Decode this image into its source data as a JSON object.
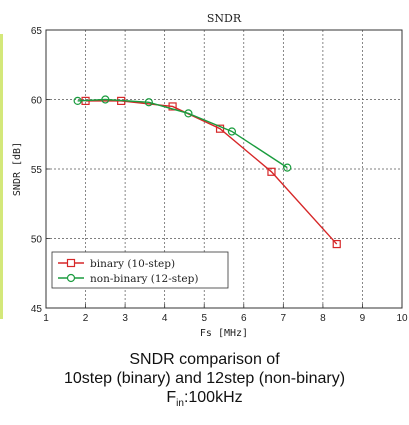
{
  "chart_data": {
    "type": "line",
    "title": "SNDR",
    "xlabel": "Fs [MHz]",
    "ylabel": "SNDR [dB]",
    "xlim": [
      1,
      10
    ],
    "ylim": [
      45,
      65
    ],
    "xticks": [
      "1",
      "2",
      "3",
      "4",
      "5",
      "6",
      "7",
      "8",
      "9",
      "10"
    ],
    "yticks": [
      "45",
      "50",
      "55",
      "60",
      "65"
    ],
    "grid": true,
    "legend_position": "bottom-left",
    "series": [
      {
        "name": "binary (10-step)",
        "color": "#d62728",
        "marker": "square",
        "x": [
          2.0,
          2.9,
          4.2,
          5.4,
          6.7,
          8.35
        ],
        "y": [
          59.9,
          59.9,
          59.5,
          57.9,
          54.8,
          49.6
        ]
      },
      {
        "name": "non-binary (12-step)",
        "color": "#1a9c3e",
        "marker": "circle",
        "x": [
          1.8,
          2.5,
          3.6,
          4.6,
          5.7,
          7.1
        ],
        "y": [
          59.9,
          60.0,
          59.8,
          59.0,
          57.7,
          55.1
        ]
      }
    ]
  },
  "caption": {
    "line1": "SNDR comparison of",
    "line2": "10step (binary) and 12step (non-binary)",
    "line3_main": "F",
    "line3_sub": "in",
    "line3_rest": ":100kHz"
  }
}
